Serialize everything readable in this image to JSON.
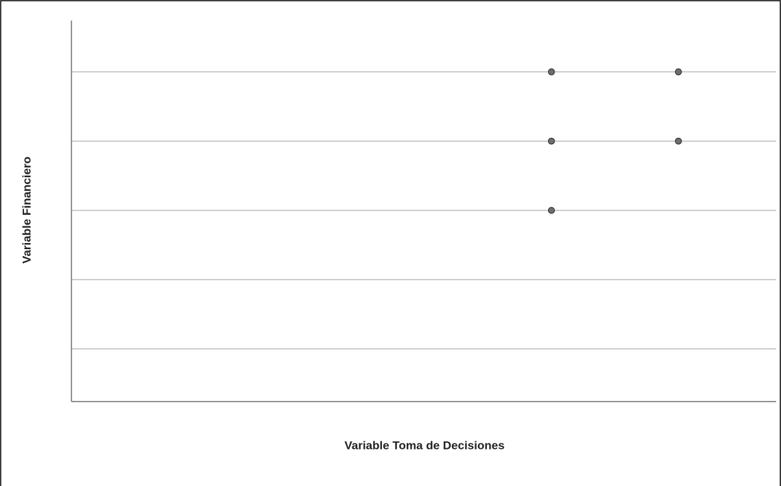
{
  "chart_data": {
    "type": "scatter",
    "xlabel": "Variable Toma de Decisiones",
    "ylabel": "Variable Financiero",
    "x": [
      4,
      5,
      4,
      5,
      4
    ],
    "values": [
      5,
      5,
      4,
      4,
      3
    ],
    "color": "#6e6e6e",
    "xlim": [
      0.22,
      5.77
    ],
    "ylim": [
      0.24,
      5.74
    ],
    "yticks": [
      1,
      2,
      3,
      4,
      5
    ],
    "grid": true
  }
}
